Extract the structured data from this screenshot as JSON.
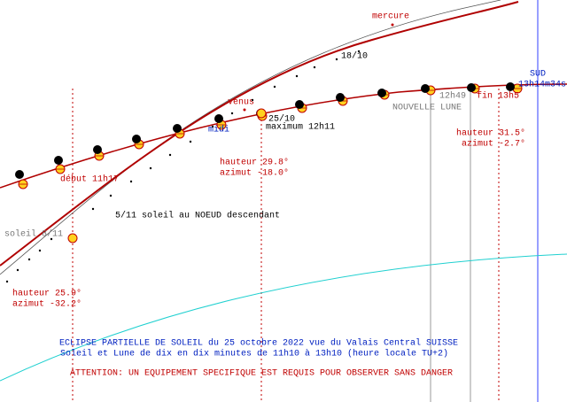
{
  "labels": {
    "mercure": "mercure",
    "date_1": "18/10",
    "south": "SUD",
    "south_time": "13h14m34s",
    "venus": "vénus",
    "noon": "midi",
    "date_2": "25/10",
    "maximum": "maximum 12h11",
    "time_end_gray": "12h49",
    "end": "fin 13h5",
    "new_moon": "NOUVELLE LUNE",
    "end_height": "hauteur 31.5°",
    "end_azimuth": "azimut -2.7°",
    "max_height": "hauteur 29.8°",
    "max_azimuth": "azimut -18.0°",
    "start": "début 11h17",
    "node": "5/11 soleil au NOEUD descendant",
    "sun_date": "soleil 8/11",
    "start_height": "hauteur 25.9°",
    "start_azimuth": "azimut -32.2°"
  },
  "caption": {
    "line_1": "ECLIPSE PARTIELLE DE SOLEIL du 25 octobre 2022 vue du Valais Central SUISSE",
    "line_2": "Soleil et Lune de dix en dix minutes de 11h10 à 13h10 (heure locale TU+2)",
    "warning": "ATTENTION: UN EQUIPEMENT SPECIFIQUE EST REQUIS POUR  OBSERVER SANS DANGER"
  }
}
